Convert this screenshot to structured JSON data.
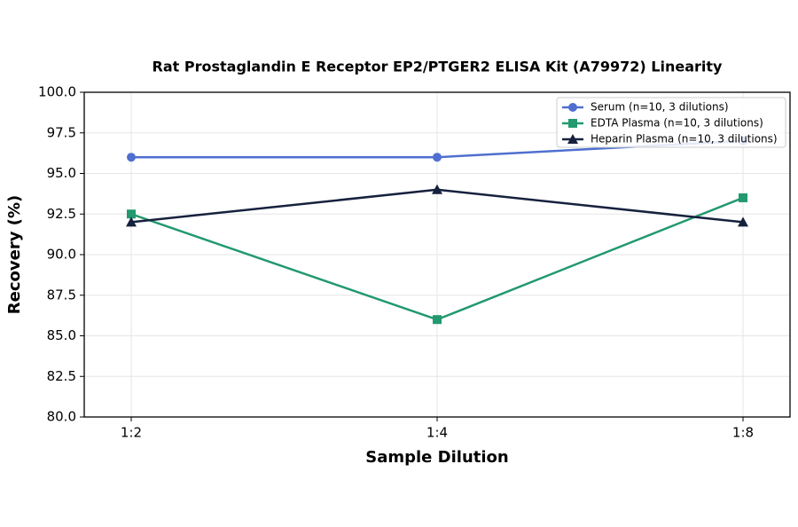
{
  "chart_data": {
    "type": "line",
    "title": "Rat Prostaglandin E Receptor EP2/PTGER2 ELISA Kit (A79972) Linearity",
    "x_label": "Sample Dilution",
    "y_label": "Recovery (%)",
    "categories": [
      "1:2",
      "1:4",
      "1:8"
    ],
    "series": [
      {
        "name": "Serum (n=10, 3 dilutions)",
        "color": "#4f6fd0",
        "marker": "circle",
        "values": [
          96.0,
          96.0,
          97.0
        ]
      },
      {
        "name": "EDTA Plasma (n=10, 3 dilutions)",
        "color": "#22996e",
        "marker": "square",
        "values": [
          92.5,
          86.0,
          93.5
        ]
      },
      {
        "name": "Heparin Plasma (n=10, 3 dilutions)",
        "color": "#16213e",
        "marker": "triangle",
        "values": [
          92.0,
          94.0,
          92.0
        ]
      }
    ],
    "ylim": [
      80,
      100
    ],
    "yticks": [
      {
        "value": 80,
        "label": "80.0"
      },
      82.5,
      {
        "value": 85,
        "label": "85.0"
      },
      87.5,
      {
        "value": 90,
        "label": "90.0"
      },
      92.5,
      {
        "value": 95,
        "label": "95.0"
      },
      97.5,
      {
        "value": 100,
        "label": "100.0"
      }
    ],
    "grid": true,
    "legend": "upper right"
  }
}
